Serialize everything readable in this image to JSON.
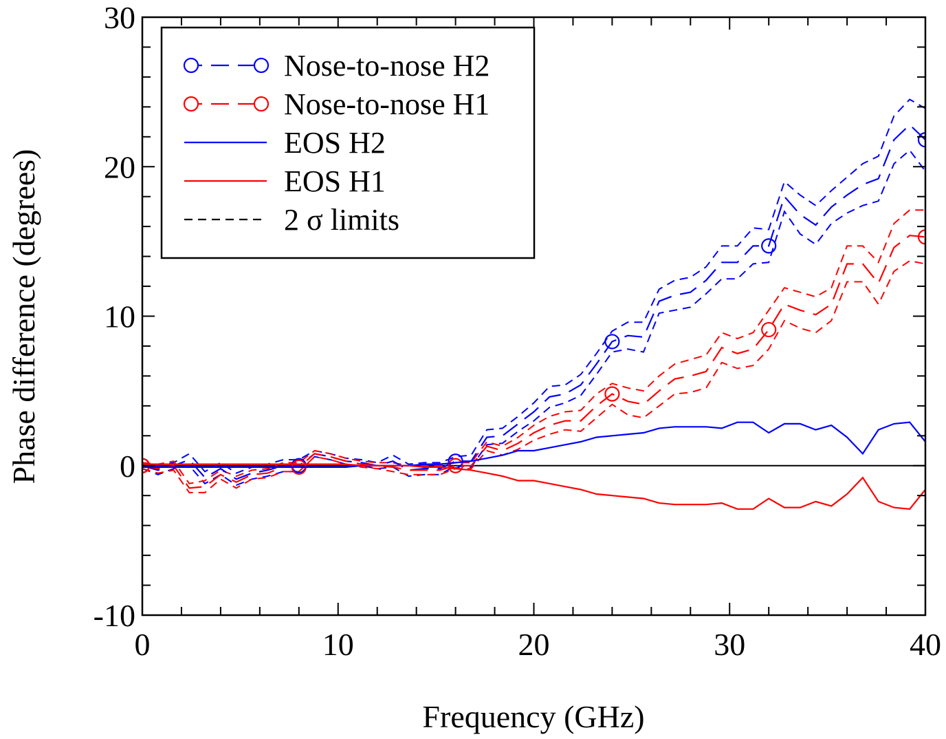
{
  "chart_data": {
    "type": "line",
    "xlabel": "Frequency (GHz)",
    "ylabel": "Phase difference (degrees)",
    "xlim": [
      0,
      40
    ],
    "ylim": [
      -10,
      30
    ],
    "x_ticks": [
      0,
      10,
      20,
      30,
      40
    ],
    "x_tick_labels": [
      "0",
      "10",
      "20",
      "30",
      "40"
    ],
    "y_ticks": [
      -10,
      0,
      10,
      20,
      30
    ],
    "y_tick_labels": [
      "-10",
      "0",
      "10",
      "20",
      "30"
    ],
    "grid": false,
    "legend_position": "top-left",
    "legend": [
      {
        "label": "Nose-to-nose H2",
        "color": "#0000ff",
        "style": "long-dash",
        "marker": "circle"
      },
      {
        "label": "Nose-to-nose H1",
        "color": "#ff0000",
        "style": "long-dash",
        "marker": "circle"
      },
      {
        "label": "EOS H2",
        "color": "#0000ff",
        "style": "solid",
        "marker": "none"
      },
      {
        "label": "EOS H1",
        "color": "#ff0000",
        "style": "solid",
        "marker": "none"
      },
      {
        "label": "2 σ limits",
        "color": "#000000",
        "style": "short-dash",
        "marker": "none"
      }
    ],
    "x": [
      0,
      0.8,
      1.6,
      2.4,
      3.2,
      4.0,
      4.8,
      5.6,
      6.4,
      7.2,
      8.0,
      8.8,
      9.6,
      10.4,
      11.2,
      12.0,
      12.8,
      13.6,
      14.4,
      15.2,
      16.0,
      16.8,
      17.6,
      18.4,
      19.2,
      20.0,
      20.8,
      21.6,
      22.4,
      23.2,
      24.0,
      24.8,
      25.6,
      26.4,
      27.2,
      28.0,
      28.8,
      29.6,
      30.4,
      31.2,
      32.0,
      32.8,
      33.6,
      34.4,
      35.2,
      36.0,
      36.8,
      37.6,
      38.4,
      39.2,
      40.0
    ],
    "series": [
      {
        "name": "Nose-to-nose H2",
        "color": "#0000ff",
        "style": "long-dash",
        "marker": "circle",
        "marker_x": [
          0,
          8,
          16,
          24,
          32,
          40
        ],
        "values": [
          0.0,
          -0.3,
          0.0,
          0.4,
          -0.8,
          -0.2,
          -0.9,
          -0.5,
          -0.3,
          0.0,
          0.0,
          0.8,
          0.6,
          0.3,
          0.2,
          0.0,
          0.3,
          -0.3,
          -0.2,
          -0.2,
          0.3,
          0.3,
          1.9,
          2.0,
          2.8,
          3.6,
          4.6,
          4.8,
          5.4,
          6.8,
          8.3,
          8.7,
          8.6,
          11.0,
          11.4,
          11.6,
          12.4,
          13.6,
          13.6,
          14.7,
          14.7,
          18.0,
          16.8,
          16.1,
          17.3,
          18.1,
          18.8,
          19.2,
          21.8,
          22.8,
          21.8
        ]
      },
      {
        "name": "Nose-to-nose H1",
        "color": "#ff0000",
        "style": "long-dash",
        "marker": "circle",
        "marker_x": [
          0,
          8,
          16,
          24,
          32,
          40
        ],
        "values": [
          0.0,
          -0.2,
          0.0,
          -1.5,
          -1.4,
          -0.6,
          -1.1,
          -0.6,
          -0.5,
          -0.1,
          -0.1,
          0.8,
          0.6,
          0.3,
          0.1,
          0.0,
          -0.1,
          -0.3,
          -0.3,
          -0.3,
          0.0,
          0.0,
          1.3,
          1.0,
          1.5,
          2.2,
          2.7,
          3.0,
          3.0,
          4.0,
          4.8,
          4.3,
          4.1,
          5.0,
          5.8,
          6.0,
          6.3,
          7.9,
          7.5,
          7.8,
          9.1,
          10.8,
          10.4,
          10.1,
          10.8,
          13.5,
          13.5,
          12.2,
          14.6,
          15.4,
          15.3
        ]
      },
      {
        "name": "EOS H2",
        "color": "#0000ff",
        "style": "solid",
        "marker": "none",
        "values": [
          -0.1,
          -0.1,
          -0.1,
          -0.1,
          -0.1,
          -0.1,
          -0.1,
          -0.1,
          -0.1,
          -0.1,
          -0.1,
          -0.1,
          -0.1,
          -0.1,
          0.0,
          0.0,
          0.0,
          0.0,
          0.1,
          0.1,
          0.2,
          0.3,
          0.5,
          0.7,
          1.0,
          1.0,
          1.2,
          1.4,
          1.6,
          1.9,
          2.0,
          2.1,
          2.2,
          2.5,
          2.6,
          2.6,
          2.6,
          2.5,
          2.9,
          2.9,
          2.2,
          2.8,
          2.8,
          2.4,
          2.7,
          1.9,
          0.8,
          2.4,
          2.8,
          2.9,
          1.6
        ]
      },
      {
        "name": "EOS H1",
        "color": "#ff0000",
        "style": "solid",
        "marker": "none",
        "values": [
          0.1,
          0.1,
          0.1,
          0.1,
          0.1,
          0.1,
          0.1,
          0.1,
          0.1,
          0.1,
          0.1,
          0.1,
          0.1,
          0.1,
          0.0,
          0.0,
          0.0,
          0.0,
          -0.1,
          -0.1,
          -0.2,
          -0.3,
          -0.5,
          -0.7,
          -1.0,
          -1.0,
          -1.2,
          -1.4,
          -1.6,
          -1.9,
          -2.0,
          -2.1,
          -2.2,
          -2.5,
          -2.6,
          -2.6,
          -2.6,
          -2.5,
          -2.9,
          -2.9,
          -2.2,
          -2.8,
          -2.8,
          -2.4,
          -2.7,
          -1.9,
          -0.8,
          -2.4,
          -2.8,
          -2.9,
          -1.6
        ]
      }
    ],
    "sigma_limits": [
      {
        "of": "Nose-to-nose H2",
        "color": "#0000ff",
        "upper": [
          0.2,
          0.0,
          0.2,
          0.8,
          -0.4,
          0.2,
          -0.5,
          -0.1,
          0.1,
          0.4,
          0.4,
          1.0,
          0.8,
          0.5,
          0.4,
          0.2,
          0.7,
          0.1,
          0.2,
          0.2,
          0.6,
          0.7,
          2.4,
          2.5,
          3.3,
          4.2,
          5.3,
          5.4,
          6.1,
          7.5,
          9.0,
          9.6,
          9.6,
          11.8,
          12.4,
          12.6,
          13.3,
          14.7,
          14.7,
          15.9,
          15.8,
          19.0,
          18.1,
          17.4,
          18.4,
          19.3,
          20.2,
          20.7,
          23.4,
          24.5,
          23.9
        ],
        "lower": [
          -0.2,
          -0.6,
          -0.2,
          0.0,
          -1.2,
          -0.6,
          -1.3,
          -0.9,
          -0.7,
          -0.4,
          -0.4,
          0.6,
          0.4,
          0.1,
          0.0,
          -0.2,
          -0.1,
          -0.7,
          -0.6,
          -0.6,
          0.0,
          -0.1,
          1.4,
          1.5,
          2.3,
          3.0,
          3.9,
          4.2,
          4.7,
          6.1,
          7.6,
          7.8,
          7.6,
          10.2,
          10.4,
          10.6,
          11.5,
          12.5,
          12.5,
          13.5,
          13.6,
          17.0,
          15.5,
          14.8,
          16.2,
          16.9,
          17.4,
          17.7,
          20.2,
          21.1,
          19.7
        ]
      },
      {
        "of": "Nose-to-nose H1",
        "color": "#ff0000",
        "upper": [
          0.2,
          0.1,
          0.3,
          -1.2,
          -1.0,
          -0.3,
          -0.7,
          -0.3,
          -0.2,
          0.2,
          0.2,
          1.0,
          0.8,
          0.5,
          0.3,
          0.2,
          0.2,
          0.0,
          0.0,
          0.0,
          0.2,
          0.2,
          1.6,
          1.3,
          1.9,
          2.7,
          3.3,
          3.6,
          3.7,
          4.8,
          5.5,
          5.2,
          5.0,
          6.0,
          6.8,
          7.1,
          7.4,
          8.9,
          8.5,
          8.9,
          10.4,
          11.9,
          11.6,
          11.3,
          11.9,
          14.7,
          14.7,
          13.6,
          16.2,
          17.1,
          17.1
        ],
        "lower": [
          -0.2,
          -0.5,
          -0.3,
          -1.8,
          -1.8,
          -0.9,
          -1.5,
          -0.9,
          -0.8,
          -0.4,
          -0.4,
          0.6,
          0.4,
          0.1,
          -0.1,
          -0.2,
          -0.4,
          -0.6,
          -0.6,
          -0.6,
          -0.2,
          -0.2,
          1.0,
          0.7,
          1.1,
          1.7,
          2.1,
          2.4,
          2.3,
          3.2,
          4.1,
          3.4,
          3.2,
          4.0,
          4.8,
          4.9,
          5.2,
          6.9,
          6.5,
          6.7,
          7.8,
          9.7,
          9.2,
          8.9,
          9.7,
          12.3,
          12.3,
          10.8,
          13.0,
          13.7,
          13.5
        ]
      }
    ]
  }
}
